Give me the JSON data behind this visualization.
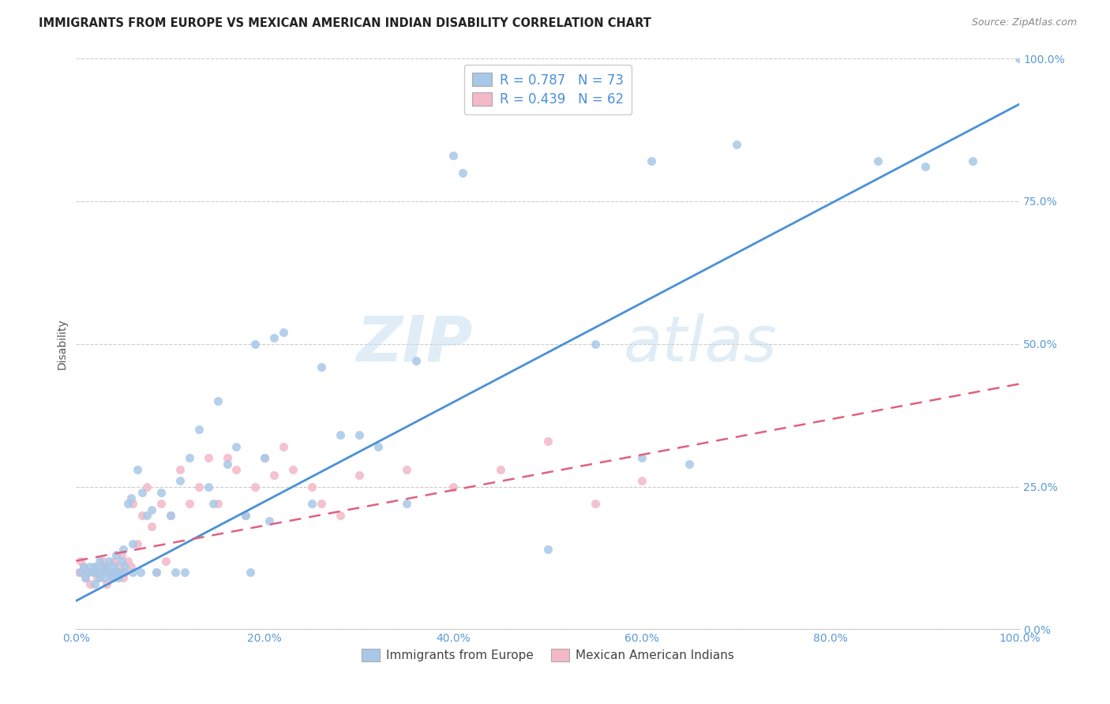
{
  "title": "IMMIGRANTS FROM EUROPE VS MEXICAN AMERICAN INDIAN DISABILITY CORRELATION CHART",
  "source": "Source: ZipAtlas.com",
  "ylabel": "Disability",
  "ytick_values": [
    0,
    25,
    50,
    75,
    100
  ],
  "xtick_values": [
    0,
    20,
    40,
    60,
    80,
    100
  ],
  "blue_color": "#a8c8e8",
  "pink_color": "#f4b8c8",
  "blue_line_color": "#4a90d9",
  "pink_line_color": "#e06080",
  "legend_blue_r": "0.787",
  "legend_blue_n": "73",
  "legend_pink_r": "0.439",
  "legend_pink_n": "62",
  "legend_label_blue": "Immigrants from Europe",
  "legend_label_pink": "Mexican American Indians",
  "watermark_zip": "ZIP",
  "watermark_atlas": "atlas",
  "blue_scatter_x": [
    0.5,
    0.8,
    1.0,
    1.2,
    1.5,
    1.8,
    2.0,
    2.0,
    2.2,
    2.5,
    2.5,
    2.8,
    3.0,
    3.0,
    3.2,
    3.5,
    3.5,
    3.8,
    4.0,
    4.0,
    4.2,
    4.5,
    4.5,
    4.8,
    5.0,
    5.0,
    5.2,
    5.5,
    5.8,
    6.0,
    6.0,
    6.5,
    6.8,
    7.0,
    7.5,
    8.0,
    8.5,
    9.0,
    10.0,
    10.5,
    11.0,
    11.5,
    12.0,
    13.0,
    14.0,
    14.5,
    15.0,
    16.0,
    17.0,
    18.0,
    18.5,
    19.0,
    20.0,
    20.5,
    21.0,
    22.0,
    25.0,
    26.0,
    28.0,
    30.0,
    32.0,
    35.0,
    36.0,
    40.0,
    41.0,
    50.0,
    55.0,
    60.0,
    61.0,
    65.0,
    70.0,
    85.0,
    90.0,
    95.0,
    100.0
  ],
  "blue_scatter_y": [
    10,
    11,
    9,
    10,
    11,
    10,
    8,
    11,
    10,
    9,
    12,
    11,
    10,
    9,
    11,
    10,
    12,
    9,
    11,
    10,
    13,
    9,
    10,
    12,
    14,
    10,
    11,
    22,
    23,
    15,
    10,
    28,
    10,
    24,
    20,
    21,
    10,
    24,
    20,
    10,
    26,
    10,
    30,
    35,
    25,
    22,
    40,
    29,
    32,
    20,
    10,
    50,
    30,
    19,
    51,
    52,
    22,
    46,
    34,
    34,
    32,
    22,
    47,
    83,
    80,
    14,
    50,
    30,
    82,
    29,
    85,
    82,
    81,
    82,
    100
  ],
  "pink_scatter_x": [
    0.3,
    0.5,
    0.8,
    1.0,
    1.2,
    1.5,
    1.8,
    2.0,
    2.2,
    2.5,
    2.8,
    3.0,
    3.2,
    3.5,
    3.8,
    4.0,
    4.2,
    4.5,
    4.8,
    5.0,
    5.2,
    5.5,
    5.8,
    6.0,
    6.5,
    7.0,
    7.5,
    8.0,
    8.5,
    9.0,
    9.5,
    10.0,
    11.0,
    12.0,
    13.0,
    14.0,
    15.0,
    16.0,
    17.0,
    18.0,
    19.0,
    20.0,
    21.0,
    22.0,
    23.0,
    25.0,
    26.0,
    28.0,
    30.0,
    35.0,
    40.0,
    45.0,
    50.0,
    55.0,
    60.0
  ],
  "pink_scatter_y": [
    10,
    12,
    11,
    9,
    10,
    8,
    10,
    11,
    9,
    10,
    12,
    11,
    8,
    10,
    9,
    12,
    10,
    11,
    13,
    9,
    10,
    12,
    11,
    22,
    15,
    20,
    25,
    18,
    10,
    22,
    12,
    20,
    28,
    22,
    25,
    30,
    22,
    30,
    28,
    20,
    25,
    30,
    27,
    32,
    28,
    25,
    22,
    20,
    27,
    28,
    25,
    28,
    33,
    22,
    26
  ],
  "blue_line_x": [
    0,
    100
  ],
  "blue_line_y": [
    5,
    92
  ],
  "pink_line_x": [
    0,
    100
  ],
  "pink_line_y": [
    12,
    43
  ],
  "background_color": "#ffffff",
  "grid_color": "#cccccc",
  "tick_color": "#5b9bd5",
  "title_color": "#222222",
  "source_color": "#888888"
}
